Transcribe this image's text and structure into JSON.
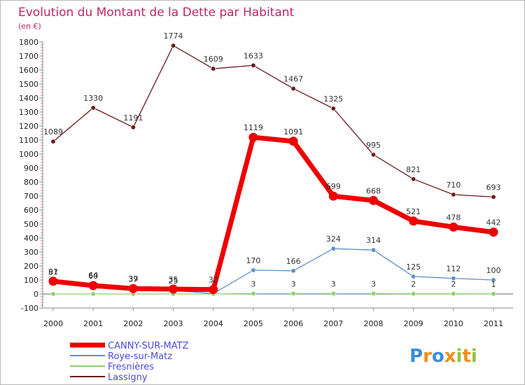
{
  "chart_data": {
    "type": "line",
    "title": "Evolution du Montant de la Dette par Habitant",
    "unit": "(en €)",
    "x": [
      "2000",
      "2001",
      "2002",
      "2003",
      "2004",
      "2005",
      "2006",
      "2007",
      "2008",
      "2009",
      "2010",
      "2011"
    ],
    "ylim": [
      -100,
      1800
    ],
    "yticks": [
      -100,
      0,
      100,
      200,
      300,
      400,
      500,
      600,
      700,
      800,
      900,
      1000,
      1100,
      1200,
      1300,
      1400,
      1500,
      1600,
      1700,
      1800
    ],
    "grid": false,
    "legend_position": "bottom-left",
    "series": [
      {
        "name": "Lassigny",
        "color": "#6b1a1a",
        "values": [
          1089,
          1330,
          1191,
          1774,
          1609,
          1633,
          1467,
          1325,
          995,
          821,
          710,
          693
        ],
        "labels": [
          "1089",
          "1330",
          "1191",
          "1774",
          "1609",
          "1633",
          "1467",
          "1325",
          "995",
          "821",
          "710",
          "693"
        ]
      },
      {
        "name": "Roye-sur-Matz",
        "color": "#5b8fc8",
        "values": [
          87,
          64,
          37,
          25,
          3,
          170,
          166,
          324,
          314,
          125,
          112,
          100
        ],
        "labels": [
          "87",
          "64",
          "37",
          "25",
          "",
          "170",
          "166",
          "324",
          "314",
          "125",
          "112",
          "100"
        ]
      },
      {
        "name": "Fresnières",
        "color": "#8ed16a",
        "values": [
          0,
          0,
          0,
          0,
          0,
          3,
          3,
          3,
          3,
          2,
          2,
          1
        ],
        "labels": [
          "",
          "",
          "",
          "",
          "",
          "3",
          "3",
          "3",
          "3",
          "2",
          "2",
          "1"
        ]
      },
      {
        "name": "CANNY-SUR-MATZ",
        "color": "#ee0000",
        "values": [
          91,
          60,
          39,
          35,
          32,
          1119,
          1091,
          699,
          668,
          521,
          478,
          442
        ],
        "labels": [
          "91",
          "60",
          "39",
          "35",
          "32",
          "1119",
          "1091",
          "699",
          "668",
          "521",
          "478",
          "442"
        ]
      }
    ],
    "legend": [
      {
        "name": "CANNY-SUR-MATZ",
        "color": "#ee0000",
        "thick": true
      },
      {
        "name": "Roye-sur-Matz",
        "color": "#5b8fc8",
        "thick": false
      },
      {
        "name": "Fresnières",
        "color": "#8ed16a",
        "thick": false
      },
      {
        "name": "Lassigny",
        "color": "#6b1a1a",
        "thick": false
      }
    ]
  },
  "logo": {
    "letters": [
      "P",
      "r",
      "o",
      "x",
      "i",
      "t",
      "i"
    ],
    "colors": [
      "#3a8fd8",
      "#f28c1c",
      "#3a8fd8",
      "#f28c1c",
      "#8cc63f",
      "#f28c1c",
      "#8cc63f"
    ]
  }
}
